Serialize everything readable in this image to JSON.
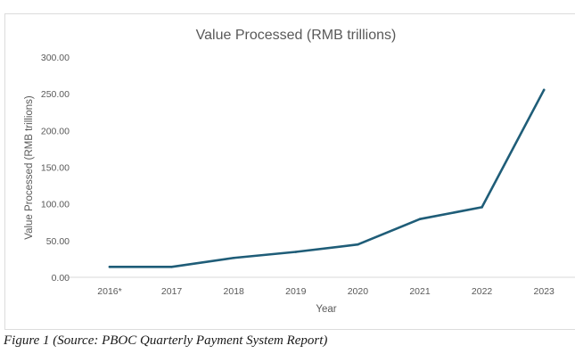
{
  "chart_data": {
    "type": "line",
    "title": "Value Processed (RMB trillions)",
    "xlabel": "Year",
    "ylabel": "Value Processed (RMB trillions)",
    "categories": [
      "2016*",
      "2017",
      "2018",
      "2019",
      "2020",
      "2021",
      "2022",
      "2023"
    ],
    "values": [
      14.2,
      14.2,
      26.4,
      34.6,
      44.7,
      79.3,
      95.5,
      255.3
    ],
    "ylim": [
      0,
      300
    ],
    "yticks": [
      "0.00",
      "50.00",
      "100.00",
      "150.00",
      "200.00",
      "250.00",
      "300.00"
    ],
    "grid": false,
    "line_color": "#1f5d78"
  },
  "caption": "Figure 1 (Source: PBOC Quarterly Payment System Report)"
}
